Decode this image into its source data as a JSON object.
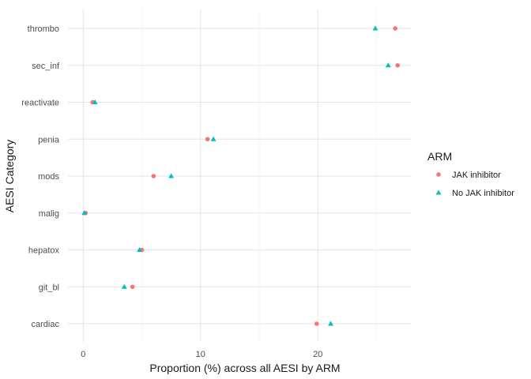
{
  "chart_data": {
    "type": "scatter",
    "xlabel": "Proportion (%) across all AESI by ARM",
    "ylabel": "AESI Category",
    "xlim": [
      -1.3,
      28.0
    ],
    "xticks": [
      "0",
      "10",
      "20"
    ],
    "xtick_values": [
      0,
      10,
      20
    ],
    "categories": [
      "cardiac",
      "git_bl",
      "hepatox",
      "malig",
      "mods",
      "penia",
      "reactivate",
      "sec_inf",
      "thrombo"
    ],
    "legend": {
      "title": "ARM",
      "position": "right"
    },
    "grid": true,
    "series": [
      {
        "name": "JAK inhibitor",
        "marker": "circle",
        "color": "#F8766D",
        "values": [
          19.9,
          4.2,
          5.0,
          0.2,
          6.0,
          10.6,
          0.8,
          26.8,
          26.6
        ]
      },
      {
        "name": "No JAK inhibitor",
        "marker": "triangle",
        "color": "#00BFC4",
        "values": [
          21.1,
          3.5,
          4.8,
          0.1,
          7.5,
          11.1,
          1.0,
          26.0,
          24.9
        ]
      }
    ]
  }
}
